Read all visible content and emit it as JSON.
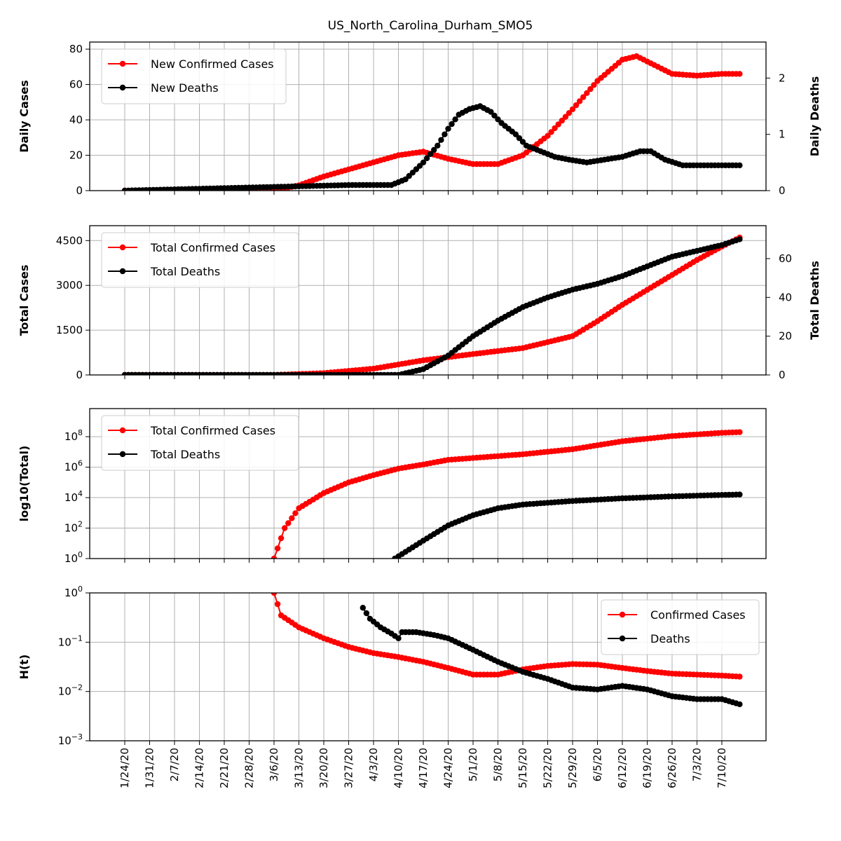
{
  "title": "US_North_Carolina_Durham_SMO5",
  "x_tick_labels": [
    "1/24/20",
    "1/31/20",
    "2/7/20",
    "2/14/20",
    "2/21/20",
    "2/28/20",
    "3/6/20",
    "3/13/20",
    "3/20/20",
    "3/27/20",
    "4/3/20",
    "4/10/20",
    "4/17/20",
    "4/24/20",
    "5/1/20",
    "5/8/20",
    "5/15/20",
    "5/22/20",
    "5/29/20",
    "6/5/20",
    "6/12/20",
    "6/19/20",
    "6/26/20",
    "7/3/20",
    "7/10/20"
  ],
  "colors": {
    "cases": "#ff0000",
    "deaths": "#000000",
    "grid": "#b0b0b0"
  },
  "chart_data": [
    {
      "type": "line",
      "ylabel": "Daily Cases",
      "y2label": "Daily Deaths",
      "ylim": [
        0,
        84
      ],
      "y2lim": [
        0,
        2.64
      ],
      "yticks": [
        0,
        20,
        40,
        60,
        80
      ],
      "yticklabels": [
        "0",
        "20",
        "40",
        "60",
        "80"
      ],
      "y2ticks": [
        0,
        1,
        2
      ],
      "y2ticklabels": [
        "0",
        "1",
        "2"
      ],
      "legend": "upper-left",
      "series": [
        {
          "name": "New Confirmed Cases",
          "axis": "left",
          "color": "#ff0000",
          "x": [
            "1/24/20",
            "3/6/20",
            "3/13/20",
            "3/20/20",
            "3/27/20",
            "4/3/20",
            "4/10/20",
            "4/17/20",
            "4/24/20",
            "5/1/20",
            "5/8/20",
            "5/15/20",
            "5/22/20",
            "5/29/20",
            "6/5/20",
            "6/12/20",
            "6/16/20",
            "6/19/20",
            "6/26/20",
            "7/3/20",
            "7/10/20",
            "7/15/20"
          ],
          "y": [
            0,
            0,
            3,
            8,
            12,
            16,
            20,
            22,
            18,
            15,
            15,
            20,
            31,
            46,
            62,
            74,
            76,
            73,
            66,
            65,
            66,
            66
          ]
        },
        {
          "name": "New Deaths",
          "axis": "right",
          "color": "#000000",
          "x": [
            "1/24/20",
            "3/28/20",
            "4/6/20",
            "4/8/20",
            "4/12/20",
            "4/17/20",
            "4/21/20",
            "4/24/20",
            "4/27/20",
            "4/30/20",
            "5/3/20",
            "5/6/20",
            "5/9/20",
            "5/13/20",
            "5/16/20",
            "5/20/20",
            "5/24/20",
            "5/28/20",
            "6/2/20",
            "6/7/20",
            "6/12/20",
            "6/17/20",
            "6/20/20",
            "6/24/20",
            "6/29/20",
            "7/3/20",
            "7/8/20",
            "7/15/20"
          ],
          "y": [
            0,
            0.1,
            0.1,
            0.1,
            0.2,
            0.5,
            0.8,
            1.1,
            1.35,
            1.45,
            1.5,
            1.4,
            1.2,
            1.0,
            0.8,
            0.7,
            0.6,
            0.55,
            0.5,
            0.55,
            0.6,
            0.7,
            0.7,
            0.55,
            0.45,
            0.45,
            0.45,
            0.45
          ]
        }
      ]
    },
    {
      "type": "line",
      "ylabel": "Total Cases",
      "y2label": "Total Deaths",
      "ylim": [
        0,
        5000
      ],
      "y2lim": [
        0,
        77
      ],
      "yticks": [
        0,
        1500,
        3000,
        4500
      ],
      "yticklabels": [
        "0",
        "1500",
        "3000",
        "4500"
      ],
      "y2ticks": [
        0,
        20,
        40,
        60
      ],
      "y2ticklabels": [
        "0",
        "20",
        "40",
        "60"
      ],
      "legend": "upper-left",
      "series": [
        {
          "name": "Total Confirmed Cases",
          "axis": "left",
          "color": "#ff0000",
          "x": [
            "1/24/20",
            "3/6/20",
            "3/20/20",
            "4/3/20",
            "4/17/20",
            "5/1/20",
            "5/15/20",
            "5/29/20",
            "6/5/20",
            "6/12/20",
            "6/19/20",
            "6/26/20",
            "7/3/20",
            "7/10/20",
            "7/15/20"
          ],
          "y": [
            0,
            0,
            60,
            210,
            490,
            700,
            900,
            1300,
            1800,
            2350,
            2850,
            3350,
            3850,
            4300,
            4600
          ]
        },
        {
          "name": "Total Deaths",
          "axis": "right",
          "color": "#000000",
          "x": [
            "1/24/20",
            "4/10/20",
            "4/17/20",
            "4/24/20",
            "5/1/20",
            "5/8/20",
            "5/15/20",
            "5/22/20",
            "5/29/20",
            "6/5/20",
            "6/12/20",
            "6/19/20",
            "6/26/20",
            "7/3/20",
            "7/10/20",
            "7/15/20"
          ],
          "y": [
            0,
            0,
            3,
            10,
            20,
            28,
            35,
            40,
            44,
            47,
            51,
            56,
            61,
            64,
            67,
            70
          ]
        }
      ]
    },
    {
      "type": "line",
      "ylabel": "log10(Total)",
      "yscale": "log",
      "ylim": [
        1,
        7000000000
      ],
      "yticks": [
        1,
        100,
        10000,
        1000000,
        100000000
      ],
      "yticklabels": [
        "10^0",
        "10^2",
        "10^4",
        "10^6",
        "10^8"
      ],
      "legend": "upper-left",
      "series": [
        {
          "name": "Total Confirmed Cases",
          "color": "#ff0000",
          "x": [
            "3/6/20",
            "3/9/20",
            "3/13/20",
            "3/20/20",
            "3/27/20",
            "4/3/20",
            "4/10/20",
            "4/17/20",
            "4/24/20",
            "5/1/20",
            "5/15/20",
            "5/29/20",
            "6/12/20",
            "6/26/20",
            "7/10/20",
            "7/15/20"
          ],
          "y": [
            1,
            100,
            2000,
            20000,
            100000,
            300000,
            800000,
            1500000,
            3000000,
            4000000,
            7000000,
            15000000,
            50000000,
            110000000,
            180000000,
            200000000
          ]
        },
        {
          "name": "Total Deaths",
          "color": "#000000",
          "x": [
            "4/9/20",
            "4/17/20",
            "4/24/20",
            "5/1/20",
            "5/8/20",
            "5/15/20",
            "5/29/20",
            "6/12/20",
            "6/26/20",
            "7/10/20",
            "7/15/20"
          ],
          "y": [
            1,
            15,
            150,
            700,
            2000,
            3500,
            6000,
            9000,
            12000,
            15000,
            16000
          ]
        }
      ]
    },
    {
      "type": "line",
      "ylabel": "H(t)",
      "yscale": "log",
      "ylim": [
        0.001,
        1
      ],
      "yticks": [
        0.001,
        0.01,
        0.1,
        1
      ],
      "yticklabels": [
        "10^−3",
        "10^−2",
        "10^−1",
        "10^0"
      ],
      "legend": "upper-right",
      "series": [
        {
          "name": "Confirmed Cases",
          "color": "#ff0000",
          "x": [
            "3/6/20",
            "3/8/20",
            "3/13/20",
            "3/20/20",
            "3/27/20",
            "4/3/20",
            "4/10/20",
            "4/17/20",
            "4/24/20",
            "5/1/20",
            "5/8/20",
            "5/15/20",
            "5/22/20",
            "5/29/20",
            "6/5/20",
            "6/12/20",
            "6/19/20",
            "6/26/20",
            "7/3/20",
            "7/10/20",
            "7/15/20"
          ],
          "y": [
            1,
            0.35,
            0.2,
            0.12,
            0.08,
            0.06,
            0.05,
            0.04,
            0.03,
            0.022,
            0.022,
            0.028,
            0.033,
            0.036,
            0.035,
            0.03,
            0.026,
            0.023,
            0.022,
            0.021,
            0.02
          ]
        },
        {
          "name": "Deaths",
          "color": "#000000",
          "x": [
            "3/31/20",
            "4/2/20",
            "4/5/20",
            "4/8/20",
            "4/10/20",
            "4/11/20",
            "4/15/20",
            "4/20/20",
            "4/24/20",
            "5/1/20",
            "5/8/20",
            "5/15/20",
            "5/22/20",
            "5/29/20",
            "6/5/20",
            "6/12/20",
            "6/19/20",
            "6/26/20",
            "7/3/20",
            "7/10/20",
            "7/15/20"
          ],
          "y": [
            0.5,
            0.3,
            0.2,
            0.15,
            0.12,
            0.16,
            0.16,
            0.14,
            0.12,
            0.07,
            0.04,
            0.025,
            0.018,
            0.012,
            0.011,
            0.013,
            0.011,
            0.008,
            0.007,
            0.007,
            0.0055
          ]
        }
      ]
    }
  ]
}
